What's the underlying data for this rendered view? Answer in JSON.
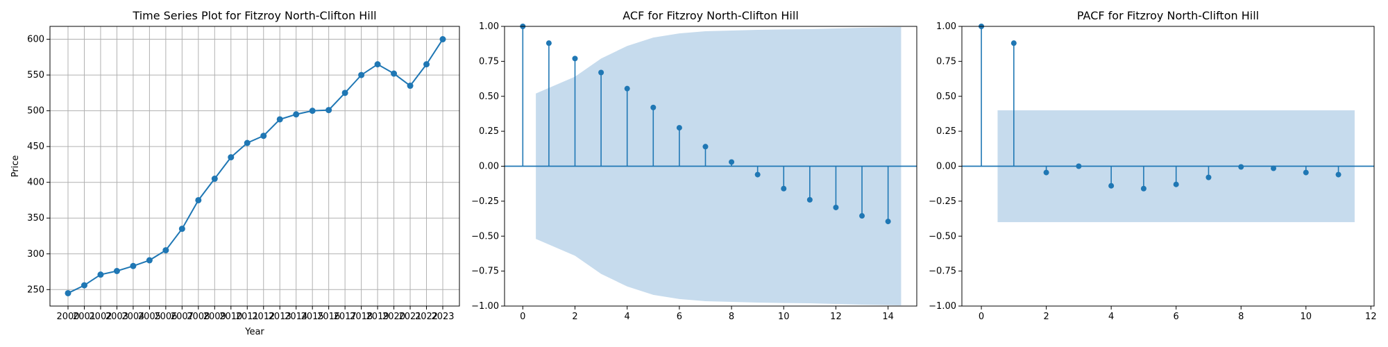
{
  "chart_data": [
    {
      "type": "line",
      "title": "Time Series Plot for Fitzroy North-Clifton Hill",
      "xlabel": "Year",
      "ylabel": "Price",
      "grid": true,
      "series_color": "#1f77b4",
      "x": [
        "2000",
        "2001",
        "2002",
        "2003",
        "2004",
        "2005",
        "2006",
        "2007",
        "2008",
        "2009",
        "2010",
        "2011",
        "2012",
        "2013",
        "2014",
        "2015",
        "2016",
        "2017",
        "2018",
        "2019",
        "2020",
        "2021",
        "2022",
        "2023"
      ],
      "values": [
        245,
        256,
        271,
        276,
        283,
        291,
        305,
        335,
        375,
        405,
        435,
        455,
        465,
        488,
        495,
        500,
        501,
        525,
        550,
        565,
        552,
        535,
        565,
        600
      ],
      "yticks": [
        250,
        300,
        350,
        400,
        450,
        500,
        550,
        600
      ],
      "ylim": [
        227,
        618
      ]
    },
    {
      "type": "stem",
      "title": "ACF for Fitzroy North-Clifton Hill",
      "series_color": "#1f77b4",
      "band_color": "#c6dbed",
      "lags": [
        0,
        1,
        2,
        3,
        4,
        5,
        6,
        7,
        8,
        9,
        10,
        11,
        12,
        13,
        14
      ],
      "values": [
        1.0,
        0.88,
        0.77,
        0.67,
        0.555,
        0.42,
        0.275,
        0.14,
        0.03,
        -0.06,
        -0.16,
        -0.24,
        -0.295,
        -0.355,
        -0.395
      ],
      "conf_band": [
        0.4,
        0.52,
        0.64,
        0.77,
        0.86,
        0.92,
        0.95,
        0.965,
        0.97,
        0.975,
        0.978,
        0.98,
        0.985,
        0.99,
        0.995
      ],
      "xticks": [
        0,
        2,
        4,
        6,
        8,
        10,
        12,
        14
      ],
      "xlim": [
        -0.7,
        15.1
      ],
      "yticks": [
        1.0,
        0.75,
        0.5,
        0.25,
        0.0,
        -0.25,
        -0.5,
        -0.75,
        -1.0
      ],
      "ytick_labels": [
        "1.00",
        "0.75",
        "0.50",
        "0.25",
        "0.00",
        "−0.25",
        "−0.50",
        "−0.75",
        "−1.00"
      ],
      "ylim": [
        -1.0,
        1.0
      ]
    },
    {
      "type": "stem",
      "title": "PACF for Fitzroy North-Clifton Hill",
      "series_color": "#1f77b4",
      "band_color": "#c6dbed",
      "lags": [
        0,
        1,
        2,
        3,
        4,
        5,
        6,
        7,
        8,
        9,
        10,
        11
      ],
      "values": [
        1.0,
        0.88,
        -0.045,
        0.0,
        -0.14,
        -0.16,
        -0.13,
        -0.08,
        -0.005,
        -0.015,
        -0.045,
        -0.06
      ],
      "conf_band_level": 0.4,
      "xticks": [
        0,
        2,
        4,
        6,
        8,
        10,
        12
      ],
      "xlim": [
        -0.6,
        12.1
      ],
      "yticks": [
        1.0,
        0.75,
        0.5,
        0.25,
        0.0,
        -0.25,
        -0.5,
        -0.75,
        -1.0
      ],
      "ytick_labels": [
        "1.00",
        "0.75",
        "0.50",
        "0.25",
        "0.00",
        "−0.25",
        "−0.50",
        "−0.75",
        "−1.00"
      ],
      "ylim": [
        -1.0,
        1.0
      ]
    }
  ]
}
